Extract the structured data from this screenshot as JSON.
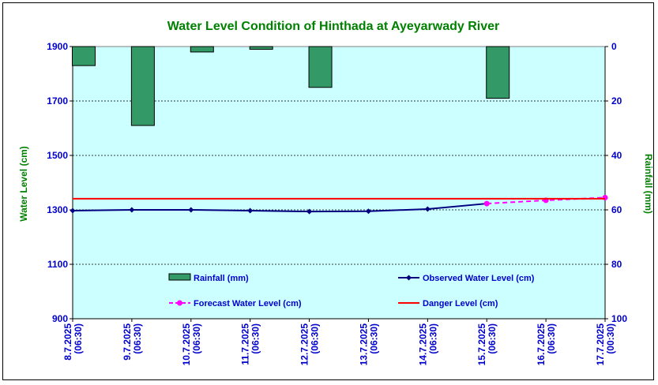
{
  "chart_data": {
    "type": "line",
    "title": "Water Level Condition of Hinthada at Ayeyarwady River",
    "ylabel": "Water Level (cm)",
    "y2label": "Rainfall (mm)",
    "categories": [
      [
        "8.7.2025",
        "(06:30)"
      ],
      [
        "9.7.2025",
        "(06:30)"
      ],
      [
        "10.7.2025",
        "(06:30)"
      ],
      [
        "11.7.2025",
        "(06:30)"
      ],
      [
        "12.7.2025",
        "(06:30)"
      ],
      [
        "13.7.2025",
        "(06:30)"
      ],
      [
        "14.7.2025",
        "(06:30)"
      ],
      [
        "15.7.2025",
        "(06:30)"
      ],
      [
        "16.7.2025",
        "(06:30)"
      ],
      [
        "17.7.2025",
        "(00:30)"
      ]
    ],
    "ylim": [
      900,
      1900
    ],
    "yticks": [
      900,
      1100,
      1300,
      1500,
      1700,
      1900
    ],
    "y2lim": [
      0,
      100
    ],
    "y2ticks": [
      0,
      20,
      40,
      60,
      80,
      100
    ],
    "y2_inverted": true,
    "grid": "horizontal dotted",
    "plot_background": "#ccffff",
    "series": [
      {
        "name": "Rainfall (mm)",
        "kind": "bar",
        "axis": "right",
        "color": "#339966",
        "values": [
          7,
          29,
          2,
          1,
          15,
          0,
          0,
          19,
          0,
          0
        ]
      },
      {
        "name": "Observed Water Level (cm)",
        "kind": "line",
        "axis": "left",
        "color": "#000080",
        "marker": "diamond",
        "values": [
          1297,
          1300,
          1300,
          1297,
          1294,
          1295,
          1303,
          1323,
          null,
          null
        ]
      },
      {
        "name": "Forecast Water Level (cm)",
        "kind": "line",
        "axis": "left",
        "color": "#ff00ff",
        "dashed": true,
        "marker": "circle",
        "values": [
          null,
          null,
          null,
          null,
          null,
          null,
          null,
          1323,
          1335,
          1345
        ]
      },
      {
        "name": "Danger Level (cm)",
        "kind": "line",
        "axis": "left",
        "color": "#ff0000",
        "values": [
          1341,
          1341,
          1341,
          1341,
          1341,
          1341,
          1341,
          1341,
          1341,
          1341
        ]
      }
    ],
    "legend_order": [
      "Rainfall (mm)",
      "Observed Water Level (cm)",
      "Forecast Water Level (cm)",
      "Danger Level (cm)"
    ]
  }
}
